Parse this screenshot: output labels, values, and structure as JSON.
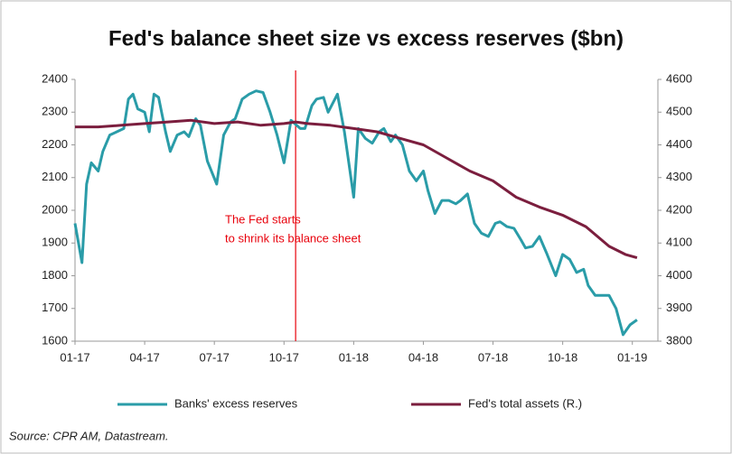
{
  "chart_data": {
    "type": "line",
    "title": "Fed's balance sheet size vs excess reserves ($bn)",
    "source": "Source: CPR AM, Datastream.",
    "xlim": [
      0,
      25.1
    ],
    "xticks": [
      {
        "value": 0,
        "label": "01-17"
      },
      {
        "value": 3,
        "label": "04-17"
      },
      {
        "value": 6,
        "label": "07-17"
      },
      {
        "value": 9,
        "label": "10-17"
      },
      {
        "value": 12,
        "label": "01-18"
      },
      {
        "value": 15,
        "label": "04-18"
      },
      {
        "value": 18,
        "label": "07-18"
      },
      {
        "value": 21,
        "label": "10-18"
      },
      {
        "value": 24,
        "label": "01-19"
      }
    ],
    "ylim": [
      1600,
      2400
    ],
    "yticks": [
      1600,
      1700,
      1800,
      1900,
      2000,
      2100,
      2200,
      2300,
      2400
    ],
    "y2lim": [
      3800,
      4600
    ],
    "y2ticks": [
      3800,
      3900,
      4000,
      4100,
      4200,
      4300,
      4400,
      4500,
      4600
    ],
    "grid": false,
    "legend": "bottom",
    "annotation": {
      "lines": [
        "The Fed starts",
        "to shrink its balance sheet"
      ],
      "x": 9.5,
      "color": "#e8000b"
    },
    "series": [
      {
        "name": "Banks' excess reserves",
        "color": "#2a9ca8",
        "axis": "y",
        "x": [
          0,
          0.3,
          0.5,
          0.7,
          1.0,
          1.2,
          1.5,
          1.8,
          2.1,
          2.3,
          2.5,
          2.7,
          3.0,
          3.2,
          3.4,
          3.6,
          3.9,
          4.1,
          4.4,
          4.7,
          4.9,
          5.2,
          5.4,
          5.7,
          6.1,
          6.4,
          6.7,
          6.9,
          7.2,
          7.5,
          7.8,
          8.1,
          8.4,
          8.7,
          9.0,
          9.3,
          9.7,
          9.9,
          10.2,
          10.4,
          10.7,
          10.9,
          11.3,
          11.6,
          12.0,
          12.2,
          12.5,
          12.8,
          13.1,
          13.3,
          13.6,
          13.8,
          14.1,
          14.4,
          14.7,
          15.0,
          15.2,
          15.5,
          15.8,
          16.1,
          16.4,
          16.6,
          16.9,
          17.2,
          17.5,
          17.8,
          18.1,
          18.3,
          18.6,
          18.9,
          19.2,
          19.4,
          19.7,
          20.0,
          20.3,
          20.7,
          21.0,
          21.3,
          21.6,
          21.9,
          22.1,
          22.4,
          22.7,
          23.0,
          23.3,
          23.6,
          23.9,
          24.2
        ],
        "values": [
          1960,
          1840,
          2080,
          2145,
          2120,
          2180,
          2230,
          2240,
          2250,
          2340,
          2355,
          2310,
          2300,
          2240,
          2355,
          2345,
          2240,
          2180,
          2230,
          2240,
          2225,
          2280,
          2260,
          2150,
          2080,
          2230,
          2270,
          2280,
          2340,
          2355,
          2365,
          2360,
          2300,
          2230,
          2145,
          2275,
          2250,
          2250,
          2320,
          2340,
          2345,
          2300,
          2355,
          2240,
          2040,
          2250,
          2220,
          2205,
          2240,
          2250,
          2210,
          2230,
          2200,
          2120,
          2090,
          2120,
          2060,
          1990,
          2030,
          2030,
          2020,
          2030,
          2050,
          1960,
          1930,
          1920,
          1960,
          1965,
          1950,
          1945,
          1910,
          1885,
          1890,
          1920,
          1870,
          1800,
          1865,
          1850,
          1810,
          1820,
          1770,
          1740,
          1740,
          1740,
          1700,
          1620,
          1650,
          1665
        ]
      },
      {
        "name": "Fed's total assets (R.)",
        "color": "#7b1e3e",
        "axis": "y2",
        "x": [
          0,
          1,
          2,
          3,
          4,
          5,
          6,
          7,
          8,
          9,
          9.5,
          10,
          11,
          12,
          13,
          14,
          15,
          16,
          17,
          18,
          19,
          20,
          21,
          22,
          23,
          23.7,
          24.2
        ],
        "values": [
          4455,
          4455,
          4460,
          4465,
          4470,
          4475,
          4465,
          4470,
          4460,
          4465,
          4470,
          4465,
          4460,
          4450,
          4440,
          4420,
          4400,
          4360,
          4320,
          4290,
          4240,
          4210,
          4185,
          4150,
          4090,
          4065,
          4055
        ]
      }
    ]
  }
}
